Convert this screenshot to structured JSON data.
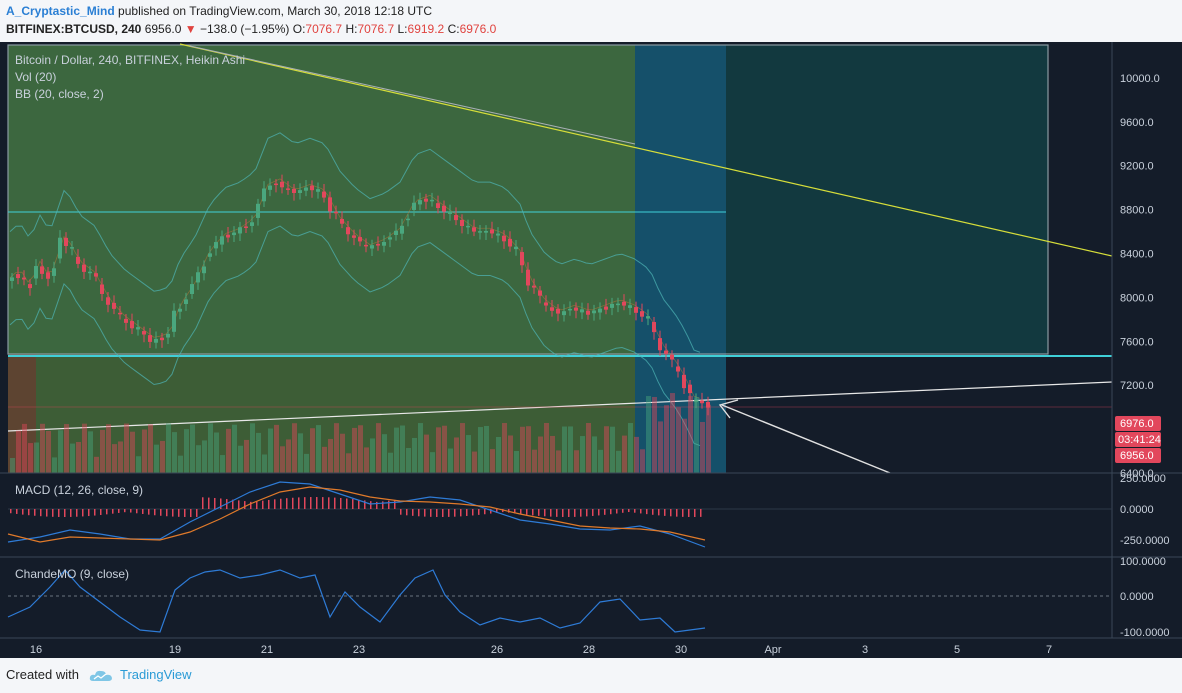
{
  "header": {
    "author": "A_Cryptastic_Mind",
    "published": "published on TradingView.com, March 30, 2018 12:18 UTC",
    "symbol": "BITFINEX:BTCUSD, 240",
    "last": "6956.0",
    "change": "−138.0 (−1.95%)",
    "o_label": "O:",
    "o": "7076.7",
    "h_label": "H:",
    "h": "7076.7",
    "l_label": "L:",
    "l": "6919.2",
    "c_label": "C:",
    "c": "6976.0"
  },
  "legend": {
    "main": "Bitcoin / Dollar, 240, BITFINEX, Heikin Ashi",
    "vol": "Vol (20)",
    "bb": "BB (20, close, 2)",
    "macd": "MACD (12, 26, close, 9)",
    "cmo": "ChandeMO (9, close)"
  },
  "badges": {
    "price": "6976.0",
    "timer": "03:41:24",
    "low": "6956.0"
  },
  "colors": {
    "up": "#4aa77e",
    "down": "#e2475c",
    "bg": "#141c29",
    "teal": "#3fd0d8",
    "yellow": "#d6de3a",
    "macd": "#2e7bd6",
    "signal": "#e07a2a",
    "cmo": "#2e7bd6"
  },
  "footer": {
    "created": "Created with",
    "brand": "TradingView"
  },
  "chart_data": [
    {
      "type": "candlestick",
      "title": "Bitcoin / Dollar, 240, BITFINEX, Heikin Ashi",
      "x_ticks": [
        "16",
        "19",
        "21",
        "23",
        "26",
        "28",
        "30",
        "Apr",
        "3",
        "5",
        "7"
      ],
      "y_ticks": [
        "10000.0",
        "9600.0",
        "9200.0",
        "8800.0",
        "8400.0",
        "8000.0",
        "7600.0",
        "7200.0",
        "6400.0"
      ],
      "ylim": [
        6400,
        10300
      ],
      "last_price": 6976.0,
      "levels": [
        8760,
        7430
      ]
    },
    {
      "type": "line",
      "title": "MACD (12, 26, close, 9)",
      "y_ticks": [
        "250.0000",
        "0.0000",
        "-250.0000"
      ],
      "ylim": [
        -350,
        300
      ]
    },
    {
      "type": "line",
      "title": "ChandeMO (9, close)",
      "y_ticks": [
        "100.0000",
        "0.0000",
        "-100.0000"
      ],
      "ylim": [
        -115,
        115
      ]
    }
  ]
}
